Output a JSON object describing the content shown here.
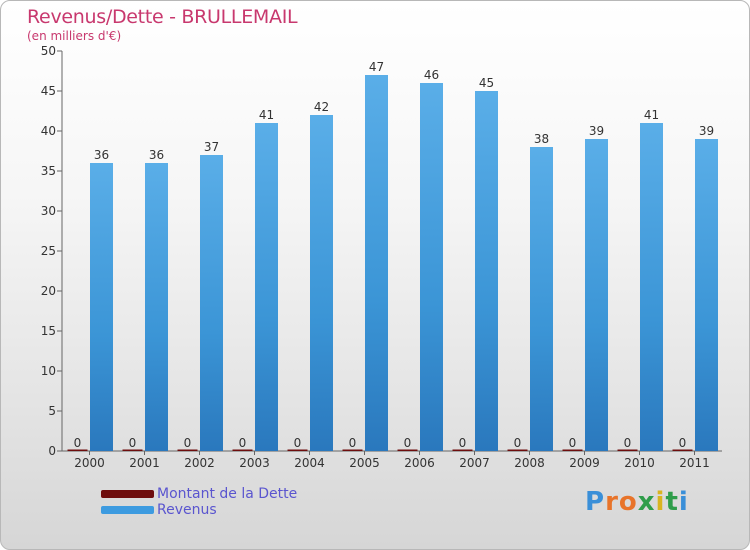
{
  "header": {
    "title": "Revenus/Dette - BRULLEMAIL",
    "subtitle": "(en milliers d'€)"
  },
  "legend": {
    "items": [
      {
        "label": "Montant de la Dette",
        "color": "#6e0d0d"
      },
      {
        "label": "Revenus",
        "color": "#3d9be0"
      }
    ]
  },
  "brand": {
    "logo_text": "Proxiti"
  },
  "chart_data": {
    "type": "bar",
    "title": "Revenus/Dette - BRULLEMAIL",
    "subtitle": "(en milliers d'€)",
    "categories": [
      "2000",
      "2001",
      "2002",
      "2003",
      "2004",
      "2005",
      "2006",
      "2007",
      "2008",
      "2009",
      "2010",
      "2011"
    ],
    "series": [
      {
        "name": "Montant de la Dette",
        "color": "#6e0d0d",
        "values": [
          0,
          0,
          0,
          0,
          0,
          0,
          0,
          0,
          0,
          0,
          0,
          0
        ]
      },
      {
        "name": "Revenus",
        "color": "#3d9be0",
        "values": [
          36,
          36,
          37,
          41,
          42,
          47,
          46,
          45,
          38,
          39,
          41,
          39
        ]
      }
    ],
    "ylim": [
      0,
      50
    ],
    "yticks": [
      0,
      5,
      10,
      15,
      20,
      25,
      30,
      35,
      40,
      45,
      50
    ],
    "grid": false,
    "legend_position": "bottom-left"
  }
}
